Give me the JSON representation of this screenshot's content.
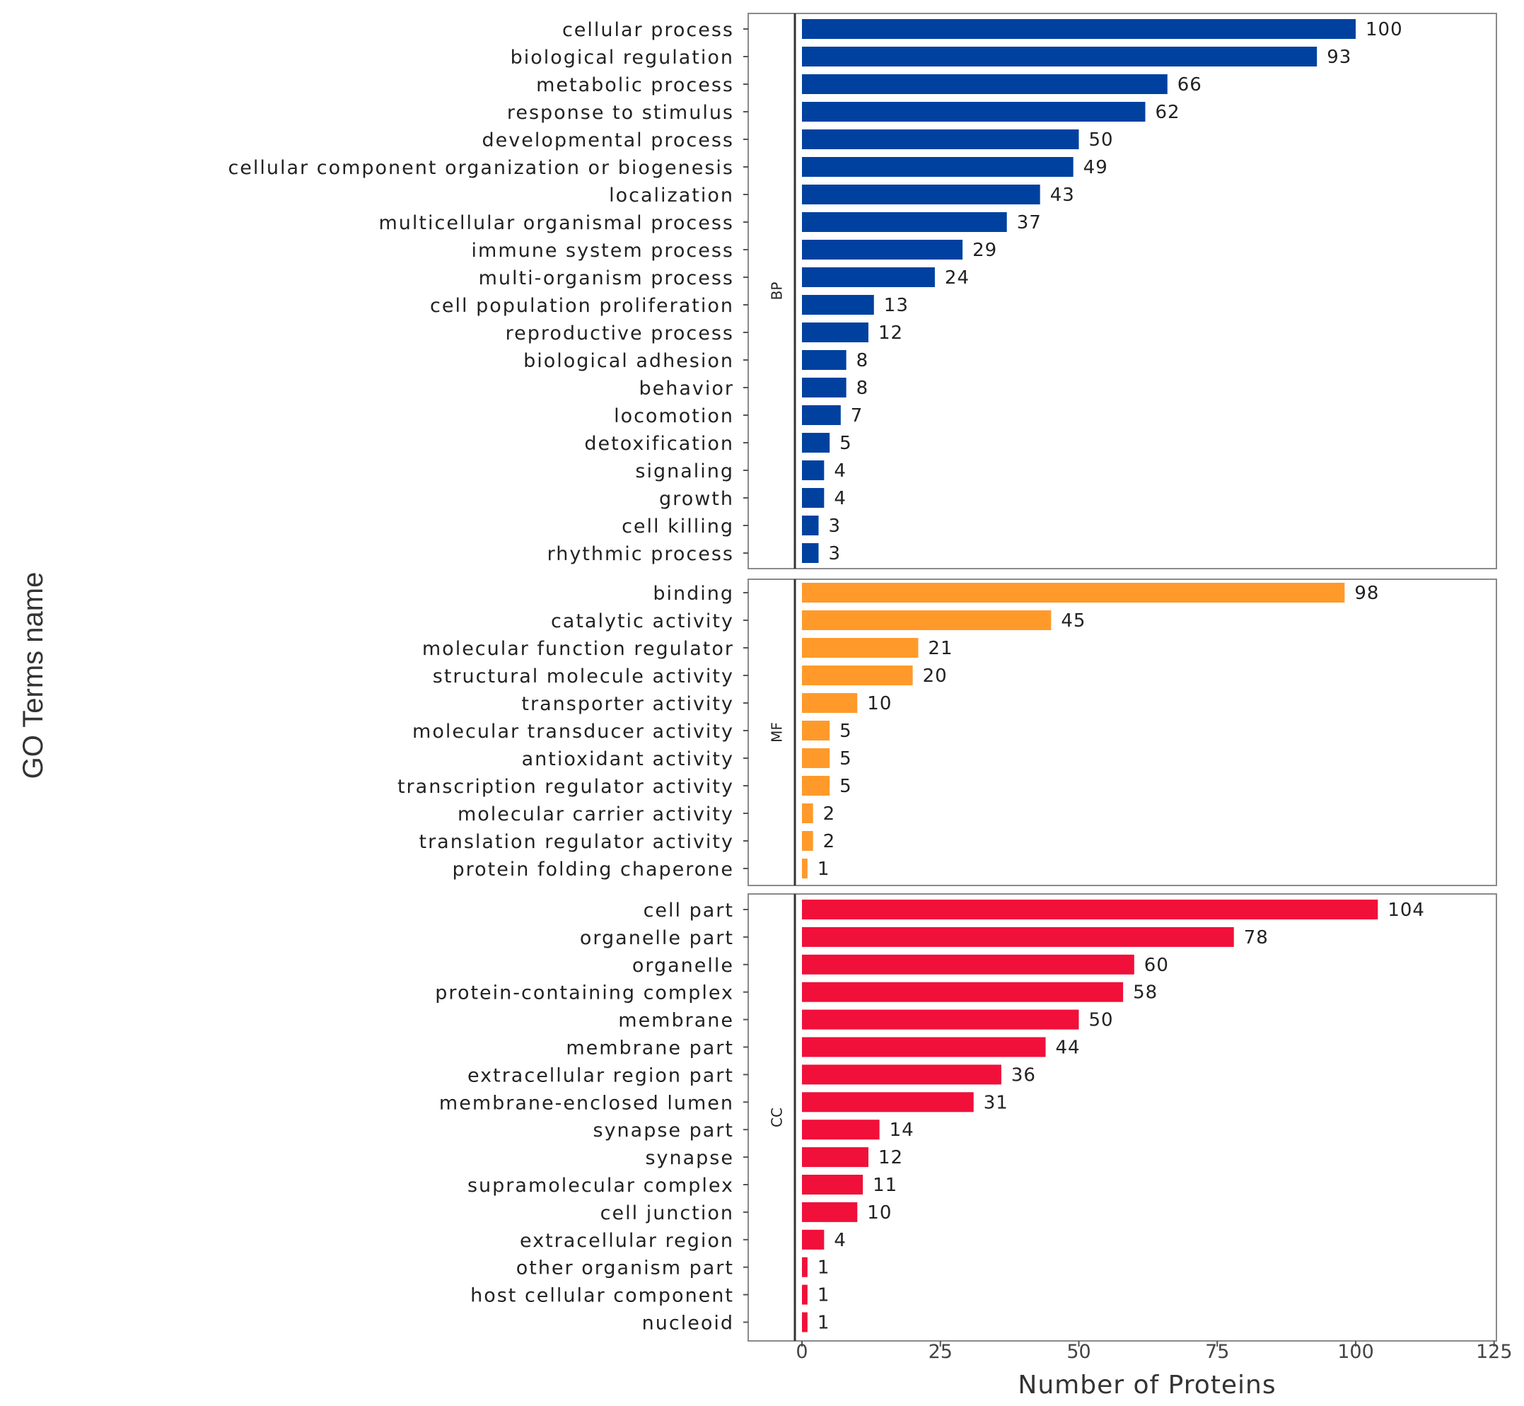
{
  "chart_data": {
    "type": "bar",
    "orientation": "horizontal",
    "xlabel": "Number of Proteins",
    "ylabel": "GO Terms name",
    "xlim": [
      0,
      125
    ],
    "xticks": [
      "0",
      "25",
      "50",
      "75",
      "100",
      "125"
    ],
    "grid": false,
    "colors": {
      "BP": "#0041a0",
      "MF": "#ff9a2a",
      "CC": "#f0103a"
    },
    "panels": [
      {
        "name": "BP",
        "categories": [
          "cellular process",
          "biological regulation",
          "metabolic process",
          "response to stimulus",
          "developmental process",
          "cellular component organization or biogenesis",
          "localization",
          "multicellular organismal process",
          "immune system process",
          "multi-organism process",
          "cell population proliferation",
          "reproductive process",
          "biological adhesion",
          "behavior",
          "locomotion",
          "detoxification",
          "signaling",
          "growth",
          "cell killing",
          "rhythmic process"
        ],
        "values": [
          100,
          93,
          66,
          62,
          50,
          49,
          43,
          37,
          29,
          24,
          13,
          12,
          8,
          8,
          7,
          5,
          4,
          4,
          3,
          3
        ]
      },
      {
        "name": "MF",
        "categories": [
          "binding",
          "catalytic activity",
          "molecular function regulator",
          "structural molecule activity",
          "transporter activity",
          "molecular transducer activity",
          "antioxidant activity",
          "transcription regulator activity",
          "molecular carrier activity",
          "translation regulator activity",
          "protein folding chaperone"
        ],
        "values": [
          98,
          45,
          21,
          20,
          10,
          5,
          5,
          5,
          2,
          2,
          1
        ]
      },
      {
        "name": "CC",
        "categories": [
          "cell part",
          "organelle part",
          "organelle",
          "protein-containing complex",
          "membrane",
          "membrane part",
          "extracellular region part",
          "membrane-enclosed lumen",
          "synapse part",
          "synapse",
          "supramolecular complex",
          "cell junction",
          "extracellular region",
          "other organism part",
          "host cellular component",
          "nucleoid"
        ],
        "values": [
          104,
          78,
          60,
          58,
          50,
          44,
          36,
          31,
          14,
          12,
          11,
          10,
          4,
          1,
          1,
          1
        ]
      }
    ]
  }
}
